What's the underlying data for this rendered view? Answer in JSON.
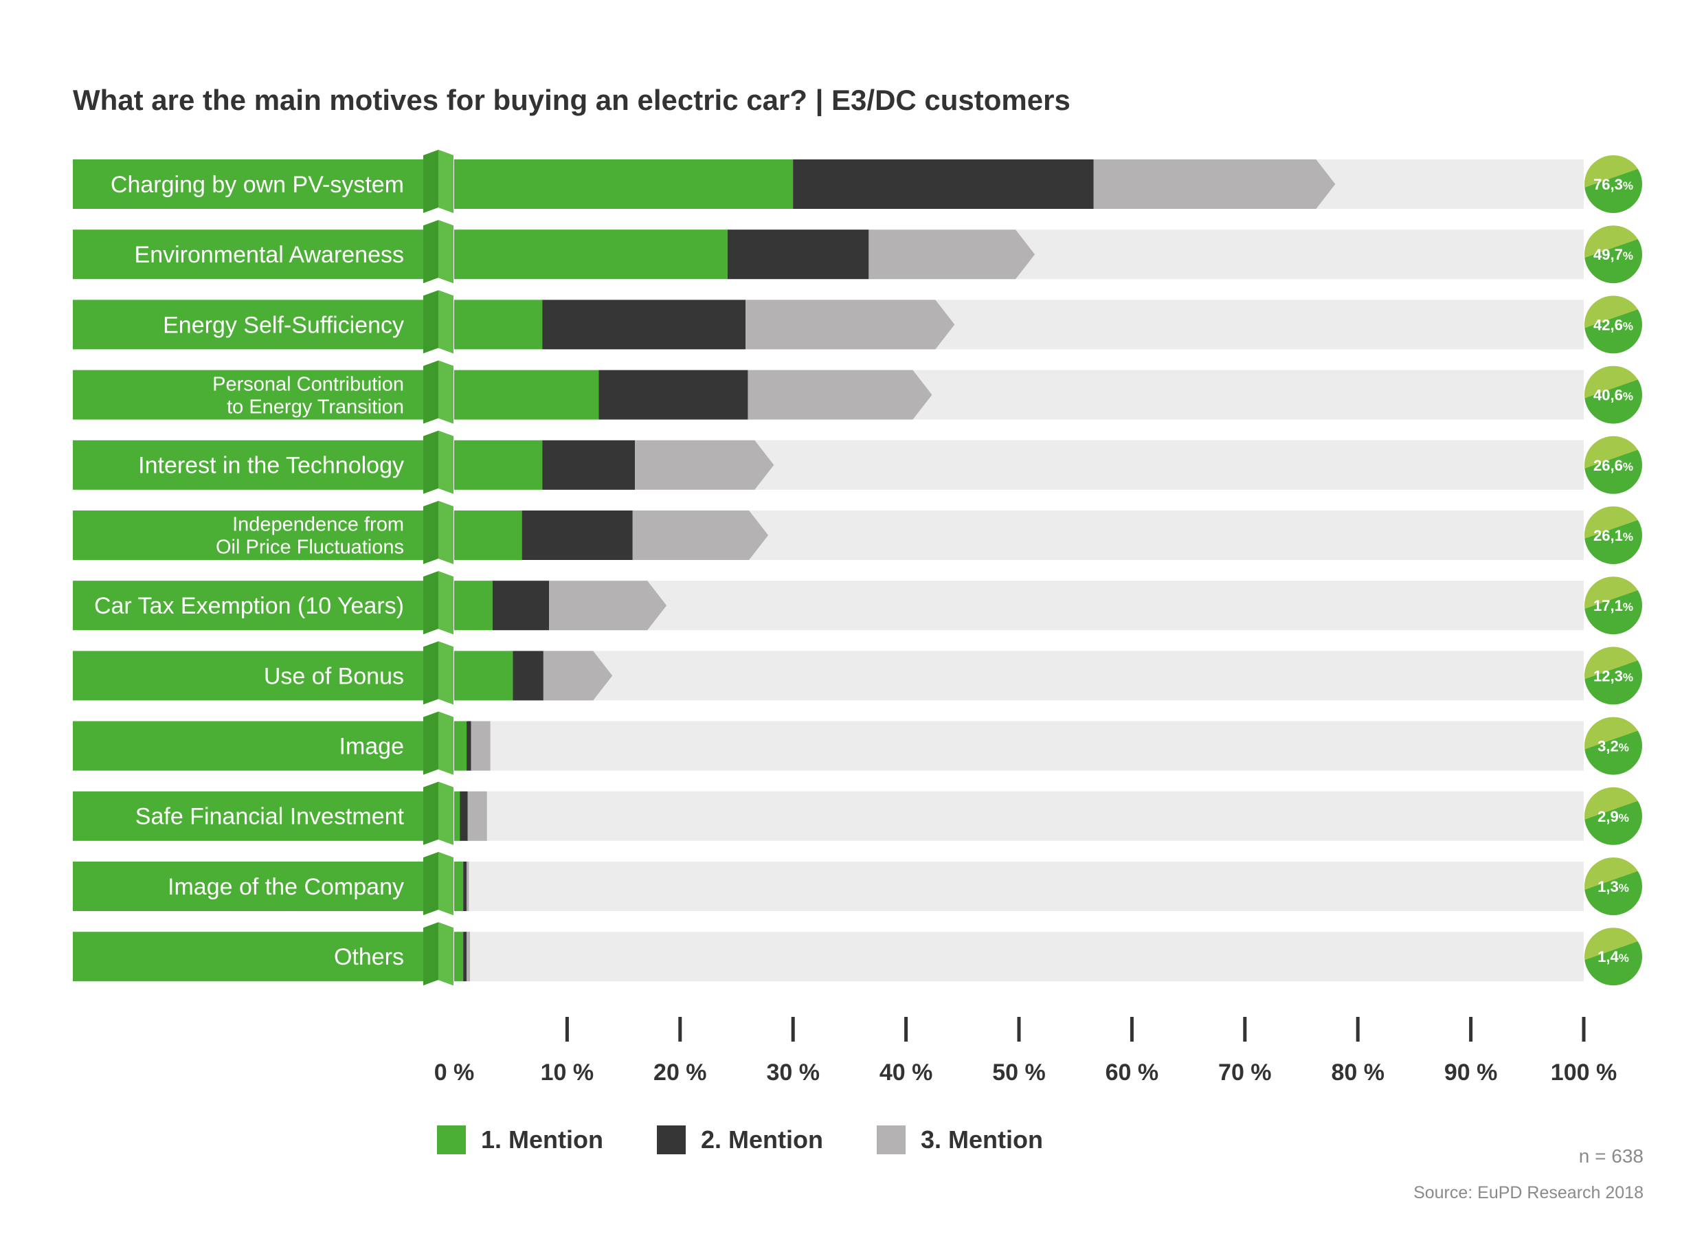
{
  "chart_data": {
    "type": "bar",
    "stacked": true,
    "orientation": "horizontal",
    "title": "What are the main motives for buying an electric car? | E3/DC customers",
    "categories": [
      [
        "Charging by own PV-system"
      ],
      [
        "Environmental Awareness"
      ],
      [
        "Energy Self-Sufficiency"
      ],
      [
        "Personal Contribution",
        "to Energy Transition"
      ],
      [
        "Interest in the Technology"
      ],
      [
        "Independence from",
        "Oil Price Fluctuations"
      ],
      [
        "Car Tax Exemption (10 Years)"
      ],
      [
        "Use of Bonus"
      ],
      [
        "Image"
      ],
      [
        "Safe Financial Investment"
      ],
      [
        "Image of the Company"
      ],
      [
        "Others"
      ]
    ],
    "series": [
      {
        "name": "1. Mention",
        "color": "#4caf35",
        "values": [
          30.0,
          24.2,
          7.8,
          12.8,
          7.8,
          6.0,
          3.4,
          5.2,
          1.1,
          0.5,
          0.8,
          0.8
        ]
      },
      {
        "name": "2. Mention",
        "color": "#363636",
        "values": [
          26.6,
          12.5,
          18.0,
          13.2,
          8.2,
          9.8,
          5.0,
          2.7,
          0.4,
          0.7,
          0.3,
          0.3
        ]
      },
      {
        "name": "3. Mention",
        "color": "#b5b2b3",
        "values": [
          19.7,
          13.0,
          16.8,
          14.6,
          10.6,
          10.3,
          8.7,
          4.4,
          1.7,
          1.7,
          0.2,
          0.3
        ]
      }
    ],
    "totals": [
      "76,3",
      "49,7",
      "42,6",
      "40,6",
      "26,6",
      "26,1",
      "17,1",
      "12,3",
      "3,2",
      "2,9",
      "1,3",
      "1,4"
    ],
    "total_unit": "%",
    "xlim": [
      0,
      100
    ],
    "x_ticks": [
      "0 %",
      "10 %",
      "20 %",
      "30 %",
      "40 %",
      "50 %",
      "60 %",
      "70 %",
      "80 %",
      "90 %",
      "100 %"
    ],
    "legend_position": "bottom",
    "colors": {
      "label_band": "#4caf35",
      "track": "#ececec",
      "text": "#333333",
      "badge_light": "#a3c84a",
      "badge_dark": "#4caf35"
    }
  },
  "notes": {
    "sample_size": "n = 638",
    "source": "Source: EuPD Research 2018"
  }
}
